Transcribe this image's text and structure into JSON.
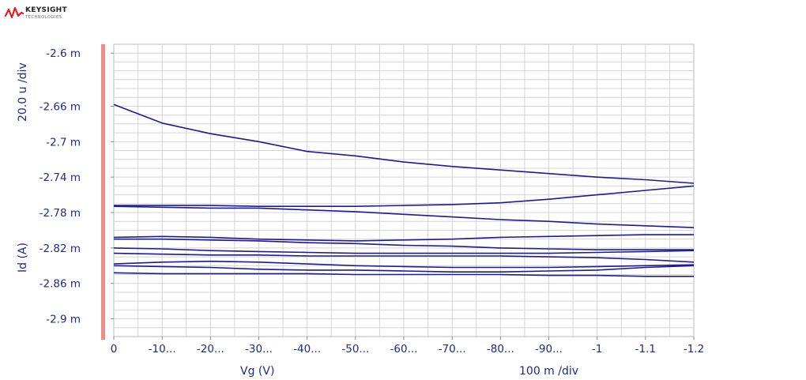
{
  "brand": {
    "name": "KEYSIGHT",
    "sub": "TECHNOLOGIES",
    "color": "#e31b23"
  },
  "chart_data": {
    "type": "line",
    "xlabel": "Vg (V)",
    "ylabel": "Id (A)",
    "x_scale_label": "100 m /div",
    "y_scale_label": "20.0 u /div",
    "xlim": [
      0,
      -1.2
    ],
    "ylim": [
      -2.92,
      -2.59
    ],
    "x_ticks": [
      0,
      -0.1,
      -0.2,
      -0.3,
      -0.4,
      -0.5,
      -0.6,
      -0.7,
      -0.8,
      -0.9,
      -1.0,
      -1.1,
      -1.2
    ],
    "x_tick_labels": [
      "0",
      "-10...",
      "-20...",
      "-30...",
      "-40...",
      "-50...",
      "-60...",
      "-70...",
      "-80...",
      "-90...",
      "-1",
      "-1.1",
      "-1.2"
    ],
    "y_ticks": [
      -2.6,
      -2.66,
      -2.7,
      -2.74,
      -2.78,
      -2.82,
      -2.86,
      -2.9
    ],
    "y_tick_labels": [
      "-2.6 m",
      "-2.66 m",
      "-2.7 m",
      "-2.74 m",
      "-2.78 m",
      "-2.82 m",
      "-2.86 m",
      "-2.9 m"
    ],
    "grid": true,
    "line_color": "#1a1a9c",
    "axis_bar_color": "#f08c84",
    "x": [
      0,
      -0.1,
      -0.2,
      -0.3,
      -0.4,
      -0.5,
      -0.6,
      -0.7,
      -0.8,
      -0.9,
      -1.0,
      -1.1,
      -1.2
    ],
    "series": [
      {
        "values": [
          -2.658,
          -2.679,
          -2.691,
          -2.7,
          -2.711,
          -2.716,
          -2.723,
          -2.728,
          -2.732,
          -2.736,
          -2.74,
          -2.743,
          -2.747
        ]
      },
      {
        "values": [
          -2.772,
          -2.772,
          -2.772,
          -2.773,
          -2.773,
          -2.773,
          -2.772,
          -2.771,
          -2.769,
          -2.765,
          -2.76,
          -2.755,
          -2.75
        ]
      },
      {
        "values": [
          -2.773,
          -2.774,
          -2.775,
          -2.775,
          -2.777,
          -2.779,
          -2.782,
          -2.785,
          -2.788,
          -2.79,
          -2.793,
          -2.795,
          -2.797
        ]
      },
      {
        "values": [
          -2.808,
          -2.807,
          -2.808,
          -2.81,
          -2.811,
          -2.812,
          -2.811,
          -2.81,
          -2.808,
          -2.807,
          -2.806,
          -2.805,
          -2.805
        ]
      },
      {
        "values": [
          -2.81,
          -2.81,
          -2.811,
          -2.812,
          -2.814,
          -2.815,
          -2.817,
          -2.818,
          -2.82,
          -2.821,
          -2.822,
          -2.822,
          -2.822
        ]
      },
      {
        "values": [
          -2.82,
          -2.821,
          -2.823,
          -2.824,
          -2.825,
          -2.826,
          -2.826,
          -2.826,
          -2.826,
          -2.826,
          -2.825,
          -2.824,
          -2.823
        ]
      },
      {
        "values": [
          -2.826,
          -2.827,
          -2.828,
          -2.828,
          -2.829,
          -2.829,
          -2.829,
          -2.829,
          -2.829,
          -2.83,
          -2.831,
          -2.833,
          -2.836
        ]
      },
      {
        "values": [
          -2.838,
          -2.836,
          -2.835,
          -2.836,
          -2.838,
          -2.84,
          -2.841,
          -2.842,
          -2.842,
          -2.842,
          -2.841,
          -2.84,
          -2.839
        ]
      },
      {
        "values": [
          -2.84,
          -2.841,
          -2.842,
          -2.844,
          -2.845,
          -2.845,
          -2.846,
          -2.847,
          -2.847,
          -2.846,
          -2.845,
          -2.842,
          -2.84
        ]
      },
      {
        "values": [
          -2.848,
          -2.849,
          -2.849,
          -2.849,
          -2.849,
          -2.85,
          -2.85,
          -2.85,
          -2.85,
          -2.851,
          -2.851,
          -2.852,
          -2.852
        ]
      }
    ]
  }
}
